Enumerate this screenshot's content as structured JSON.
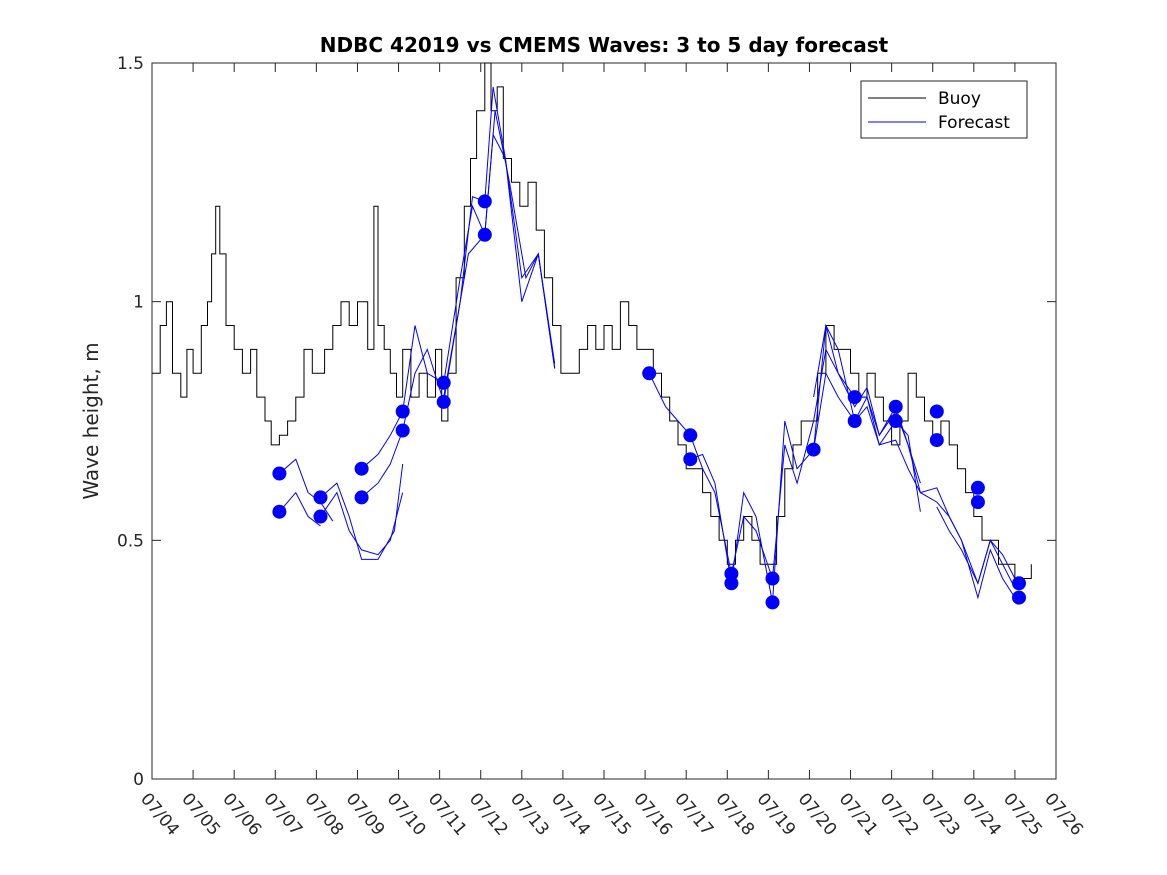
{
  "chart_data": {
    "type": "line",
    "title": "NDBC 42019 vs CMEMS Waves: 3 to 5 day forecast",
    "xlabel": "",
    "ylabel": "Wave height, m",
    "x_tick_labels": [
      "07/04",
      "07/05",
      "07/06",
      "07/07",
      "07/08",
      "07/09",
      "07/10",
      "07/11",
      "07/12",
      "07/13",
      "07/14",
      "07/15",
      "07/16",
      "07/17",
      "07/18",
      "07/19",
      "07/20",
      "07/21",
      "07/22",
      "07/23",
      "07/24",
      "07/25",
      "07/26"
    ],
    "xlim_days": [
      0,
      22
    ],
    "y_ticks": [
      0,
      0.5,
      1,
      1.5
    ],
    "y_tick_labels": [
      "0",
      "0.5",
      "1",
      "1.5"
    ],
    "ylim": [
      0,
      1.5
    ],
    "grid": false,
    "legend": {
      "position": "top-right",
      "entries": [
        "Buoy",
        "Forecast"
      ]
    },
    "colors": {
      "buoy": "#000000",
      "forecast": "#0000ff",
      "points": "#0000ff"
    },
    "buoy": {
      "name": "Buoy",
      "points": [
        [
          0.0,
          0.85
        ],
        [
          0.2,
          0.95
        ],
        [
          0.35,
          1.0
        ],
        [
          0.5,
          0.85
        ],
        [
          0.7,
          0.8
        ],
        [
          0.85,
          0.9
        ],
        [
          1.0,
          0.85
        ],
        [
          1.2,
          0.95
        ],
        [
          1.35,
          1.0
        ],
        [
          1.45,
          1.1
        ],
        [
          1.55,
          1.2
        ],
        [
          1.65,
          1.1
        ],
        [
          1.8,
          0.95
        ],
        [
          2.0,
          0.9
        ],
        [
          2.2,
          0.85
        ],
        [
          2.4,
          0.9
        ],
        [
          2.55,
          0.8
        ],
        [
          2.75,
          0.75
        ],
        [
          2.9,
          0.7
        ],
        [
          3.1,
          0.72
        ],
        [
          3.3,
          0.75
        ],
        [
          3.5,
          0.8
        ],
        [
          3.7,
          0.9
        ],
        [
          3.9,
          0.85
        ],
        [
          4.2,
          0.9
        ],
        [
          4.4,
          0.95
        ],
        [
          4.6,
          1.0
        ],
        [
          4.8,
          0.95
        ],
        [
          5.0,
          1.0
        ],
        [
          5.25,
          0.9
        ],
        [
          5.4,
          1.2
        ],
        [
          5.5,
          0.95
        ],
        [
          5.65,
          0.9
        ],
        [
          5.8,
          0.85
        ],
        [
          5.95,
          0.8
        ],
        [
          6.1,
          0.9
        ],
        [
          6.3,
          0.8
        ],
        [
          6.5,
          0.85
        ],
        [
          6.7,
          0.8
        ],
        [
          6.9,
          0.9
        ],
        [
          7.05,
          0.75
        ],
        [
          7.2,
          0.85
        ],
        [
          7.4,
          1.05
        ],
        [
          7.6,
          1.2
        ],
        [
          7.75,
          1.3
        ],
        [
          7.9,
          1.4
        ],
        [
          8.1,
          1.5
        ],
        [
          8.25,
          1.4
        ],
        [
          8.4,
          1.45
        ],
        [
          8.55,
          1.3
        ],
        [
          8.75,
          1.25
        ],
        [
          8.95,
          1.2
        ],
        [
          9.15,
          1.25
        ],
        [
          9.35,
          1.15
        ],
        [
          9.55,
          1.05
        ],
        [
          9.75,
          0.95
        ],
        [
          9.95,
          0.85
        ],
        [
          10.2,
          0.85
        ],
        [
          10.4,
          0.9
        ],
        [
          10.6,
          0.95
        ],
        [
          10.8,
          0.9
        ],
        [
          11.0,
          0.95
        ],
        [
          11.2,
          0.9
        ],
        [
          11.4,
          1.0
        ],
        [
          11.6,
          0.95
        ],
        [
          11.8,
          0.9
        ],
        [
          12.0,
          0.9
        ],
        [
          12.2,
          0.85
        ],
        [
          12.4,
          0.8
        ],
        [
          12.6,
          0.75
        ],
        [
          12.8,
          0.7
        ],
        [
          13.0,
          0.65
        ],
        [
          13.2,
          0.65
        ],
        [
          13.4,
          0.6
        ],
        [
          13.6,
          0.55
        ],
        [
          13.8,
          0.5
        ],
        [
          14.0,
          0.45
        ],
        [
          14.2,
          0.5
        ],
        [
          14.4,
          0.55
        ],
        [
          14.6,
          0.5
        ],
        [
          14.8,
          0.45
        ],
        [
          15.0,
          0.45
        ],
        [
          15.2,
          0.55
        ],
        [
          15.4,
          0.65
        ],
        [
          15.6,
          0.7
        ],
        [
          15.8,
          0.75
        ],
        [
          16.0,
          0.75
        ],
        [
          16.2,
          0.85
        ],
        [
          16.4,
          0.95
        ],
        [
          16.6,
          0.9
        ],
        [
          16.8,
          0.9
        ],
        [
          17.0,
          0.85
        ],
        [
          17.2,
          0.8
        ],
        [
          17.4,
          0.85
        ],
        [
          17.6,
          0.8
        ],
        [
          17.8,
          0.75
        ],
        [
          18.0,
          0.7
        ],
        [
          18.2,
          0.75
        ],
        [
          18.4,
          0.85
        ],
        [
          18.6,
          0.8
        ],
        [
          18.8,
          0.75
        ],
        [
          19.0,
          0.7
        ],
        [
          19.2,
          0.75
        ],
        [
          19.4,
          0.7
        ],
        [
          19.6,
          0.65
        ],
        [
          19.8,
          0.6
        ],
        [
          20.0,
          0.55
        ],
        [
          20.2,
          0.5
        ],
        [
          20.4,
          0.5
        ],
        [
          20.6,
          0.45
        ],
        [
          20.8,
          0.45
        ],
        [
          21.0,
          0.4
        ],
        [
          21.2,
          0.42
        ],
        [
          21.4,
          0.45
        ]
      ]
    },
    "forecast_series": [
      {
        "points": [
          [
            3.1,
            0.56
          ],
          [
            3.5,
            0.6
          ],
          [
            3.8,
            0.55
          ],
          [
            4.1,
            0.53
          ]
        ]
      },
      {
        "points": [
          [
            3.1,
            0.64
          ],
          [
            3.5,
            0.67
          ],
          [
            3.8,
            0.6
          ],
          [
            4.1,
            0.58
          ],
          [
            4.4,
            0.54
          ]
        ]
      },
      {
        "points": [
          [
            4.1,
            0.55
          ],
          [
            4.5,
            0.6
          ],
          [
            4.8,
            0.52
          ],
          [
            5.1,
            0.48
          ],
          [
            5.5,
            0.47
          ],
          [
            5.8,
            0.5
          ],
          [
            6.1,
            0.6
          ]
        ]
      },
      {
        "points": [
          [
            4.1,
            0.59
          ],
          [
            4.5,
            0.62
          ],
          [
            4.8,
            0.55
          ],
          [
            5.1,
            0.46
          ],
          [
            5.5,
            0.46
          ],
          [
            5.9,
            0.52
          ],
          [
            6.1,
            0.66
          ]
        ]
      },
      {
        "points": [
          [
            5.1,
            0.59
          ],
          [
            5.5,
            0.62
          ],
          [
            5.8,
            0.66
          ],
          [
            6.1,
            0.73
          ],
          [
            6.4,
            0.85
          ],
          [
            6.7,
            0.9
          ],
          [
            7.1,
            0.79
          ],
          [
            7.5,
            1.0
          ],
          [
            7.8,
            1.22
          ],
          [
            8.1,
            1.21
          ],
          [
            8.3,
            1.45
          ],
          [
            8.6,
            1.3
          ],
          [
            9.0,
            1.05
          ],
          [
            9.4,
            1.1
          ],
          [
            9.8,
            0.86
          ]
        ]
      },
      {
        "points": [
          [
            5.1,
            0.65
          ],
          [
            5.5,
            0.68
          ],
          [
            5.8,
            0.72
          ],
          [
            6.1,
            0.77
          ],
          [
            6.4,
            0.95
          ],
          [
            6.7,
            0.85
          ],
          [
            7.1,
            0.83
          ],
          [
            7.5,
            1.05
          ],
          [
            7.8,
            1.2
          ],
          [
            8.1,
            1.14
          ],
          [
            8.3,
            1.35
          ],
          [
            8.6,
            1.3
          ],
          [
            9.0,
            1.0
          ],
          [
            9.4,
            1.1
          ],
          [
            9.8,
            0.87
          ]
        ]
      },
      {
        "points": [
          [
            7.1,
            0.8
          ],
          [
            7.4,
            0.95
          ],
          [
            7.7,
            1.1
          ],
          [
            8.1,
            1.14
          ],
          [
            8.35,
            1.4
          ],
          [
            8.7,
            1.25
          ],
          [
            9.1,
            1.05
          ],
          [
            9.4,
            1.1
          ],
          [
            9.8,
            0.86
          ]
        ]
      },
      {
        "points": [
          [
            12.1,
            0.85
          ],
          [
            12.5,
            0.78
          ],
          [
            12.8,
            0.75
          ],
          [
            13.1,
            0.72
          ],
          [
            13.4,
            0.65
          ],
          [
            13.7,
            0.6
          ],
          [
            14.1,
            0.43
          ],
          [
            14.4,
            0.55
          ],
          [
            14.7,
            0.52
          ],
          [
            15.1,
            0.42
          ],
          [
            15.4,
            0.7
          ],
          [
            15.7,
            0.62
          ],
          [
            16.1,
            0.75
          ],
          [
            16.4,
            0.9
          ],
          [
            16.7,
            0.85
          ],
          [
            17.1,
            0.8
          ],
          [
            17.4,
            0.8
          ],
          [
            17.7,
            0.72
          ],
          [
            18.1,
            0.78
          ],
          [
            18.4,
            0.7
          ],
          [
            18.7,
            0.62
          ]
        ]
      },
      {
        "points": [
          [
            13.1,
            0.67
          ],
          [
            13.4,
            0.68
          ],
          [
            13.7,
            0.62
          ],
          [
            14.1,
            0.41
          ],
          [
            14.4,
            0.6
          ],
          [
            14.7,
            0.55
          ],
          [
            15.1,
            0.37
          ],
          [
            15.4,
            0.75
          ],
          [
            15.7,
            0.65
          ],
          [
            16.1,
            0.69
          ],
          [
            16.4,
            0.95
          ],
          [
            16.7,
            0.9
          ],
          [
            17.1,
            0.75
          ],
          [
            17.4,
            0.78
          ],
          [
            17.7,
            0.7
          ],
          [
            18.1,
            0.75
          ],
          [
            18.4,
            0.72
          ],
          [
            18.7,
            0.56
          ]
        ]
      },
      {
        "points": [
          [
            16.1,
            0.69
          ],
          [
            16.4,
            0.85
          ],
          [
            16.7,
            0.8
          ],
          [
            17.1,
            0.75
          ],
          [
            17.4,
            0.8
          ],
          [
            17.7,
            0.7
          ],
          [
            18.1,
            0.71
          ],
          [
            18.4,
            0.65
          ],
          [
            18.7,
            0.6
          ],
          [
            19.1,
            0.58
          ],
          [
            19.4,
            0.55
          ],
          [
            19.7,
            0.5
          ],
          [
            20.1,
            0.41
          ],
          [
            20.4,
            0.5
          ],
          [
            20.7,
            0.45
          ],
          [
            21.0,
            0.4
          ]
        ]
      },
      {
        "points": [
          [
            16.1,
            0.8
          ],
          [
            16.4,
            0.95
          ],
          [
            16.7,
            0.85
          ],
          [
            17.1,
            0.78
          ],
          [
            17.4,
            0.82
          ],
          [
            17.7,
            0.72
          ],
          [
            18.1,
            0.77
          ],
          [
            18.4,
            0.7
          ],
          [
            18.7,
            0.6
          ],
          [
            19.1,
            0.61
          ],
          [
            19.4,
            0.55
          ],
          [
            19.7,
            0.5
          ],
          [
            20.1,
            0.38
          ],
          [
            20.4,
            0.48
          ],
          [
            20.7,
            0.42
          ],
          [
            21.0,
            0.38
          ]
        ]
      },
      {
        "points": [
          [
            19.1,
            0.57
          ],
          [
            19.4,
            0.52
          ],
          [
            19.7,
            0.48
          ],
          [
            20.1,
            0.41
          ],
          [
            20.4,
            0.5
          ],
          [
            20.7,
            0.47
          ],
          [
            21.0,
            0.42
          ]
        ]
      }
    ],
    "forecast_points": [
      [
        3.1,
        0.56
      ],
      [
        3.1,
        0.64
      ],
      [
        4.1,
        0.59
      ],
      [
        4.1,
        0.55
      ],
      [
        5.1,
        0.65
      ],
      [
        5.1,
        0.59
      ],
      [
        6.1,
        0.77
      ],
      [
        6.1,
        0.73
      ],
      [
        7.1,
        0.83
      ],
      [
        7.1,
        0.79
      ],
      [
        8.1,
        1.21
      ],
      [
        8.1,
        1.14
      ],
      [
        12.1,
        0.85
      ],
      [
        13.1,
        0.72
      ],
      [
        13.1,
        0.67
      ],
      [
        14.1,
        0.43
      ],
      [
        14.1,
        0.41
      ],
      [
        15.1,
        0.42
      ],
      [
        15.1,
        0.37
      ],
      [
        16.1,
        0.69
      ],
      [
        17.1,
        0.8
      ],
      [
        17.1,
        0.75
      ],
      [
        18.1,
        0.78
      ],
      [
        18.1,
        0.75
      ],
      [
        19.1,
        0.77
      ],
      [
        19.1,
        0.71
      ],
      [
        20.1,
        0.61
      ],
      [
        20.1,
        0.58
      ],
      [
        21.1,
        0.41
      ],
      [
        21.1,
        0.38
      ]
    ]
  }
}
